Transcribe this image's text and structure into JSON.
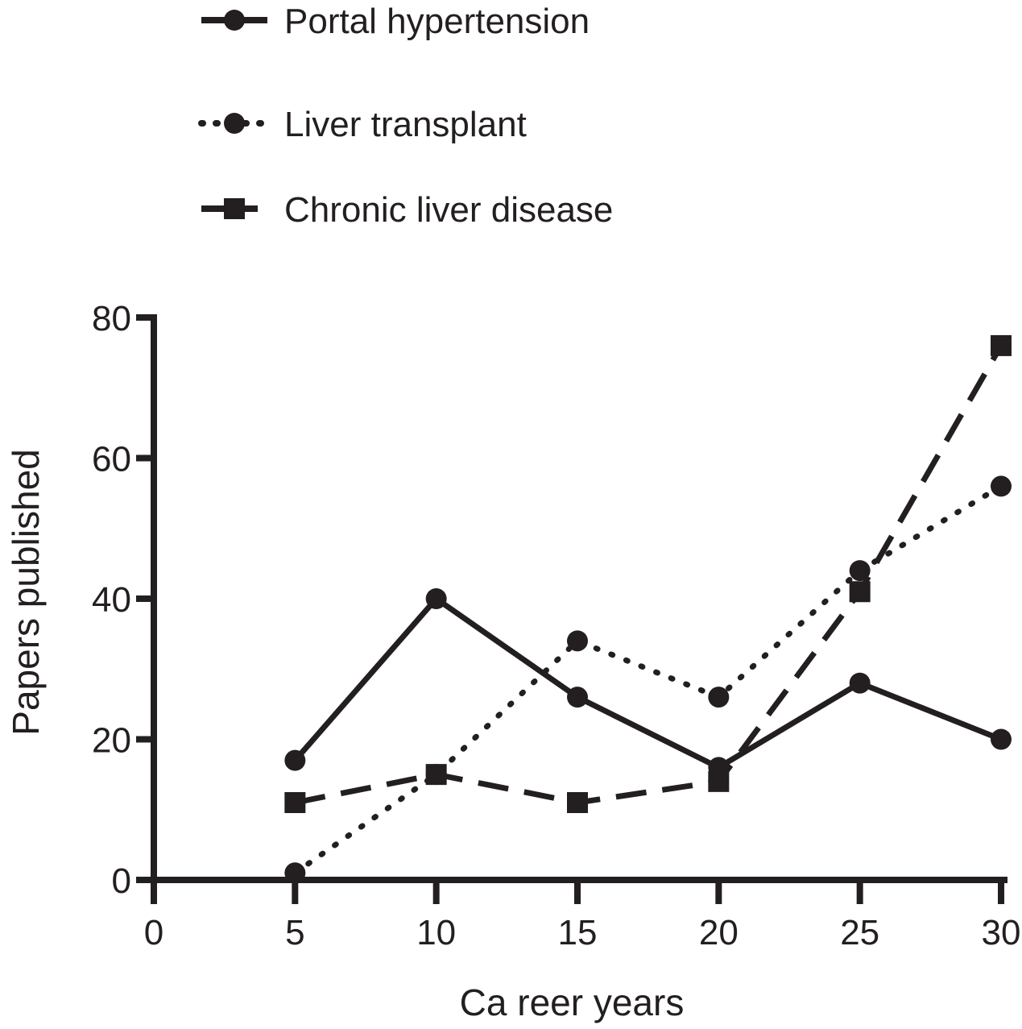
{
  "chart_data": {
    "type": "line",
    "title": "",
    "xlabel": "Ca reer years",
    "ylabel": "Papers published",
    "xlim": [
      0,
      30
    ],
    "ylim": [
      0,
      80
    ],
    "xticks": [
      0,
      5,
      10,
      15,
      20,
      25,
      30
    ],
    "yticks": [
      0,
      20,
      40,
      60,
      80
    ],
    "grid": false,
    "legend_position": "top-left",
    "x": [
      5,
      10,
      15,
      20,
      25,
      30
    ],
    "series": [
      {
        "name": "Portal hypertension",
        "style": "solid",
        "marker": "circle",
        "values": [
          17,
          40,
          26,
          16,
          28,
          20
        ]
      },
      {
        "name": "Liver transplant",
        "style": "dotted",
        "marker": "circle",
        "values": [
          1,
          15,
          34,
          26,
          44,
          56
        ]
      },
      {
        "name": "Chronic liver disease",
        "style": "dashed",
        "marker": "square",
        "values": [
          11,
          15,
          11,
          14,
          41,
          76
        ]
      }
    ],
    "colors": {
      "ink": "#231f20",
      "background": "#ffffff"
    }
  }
}
